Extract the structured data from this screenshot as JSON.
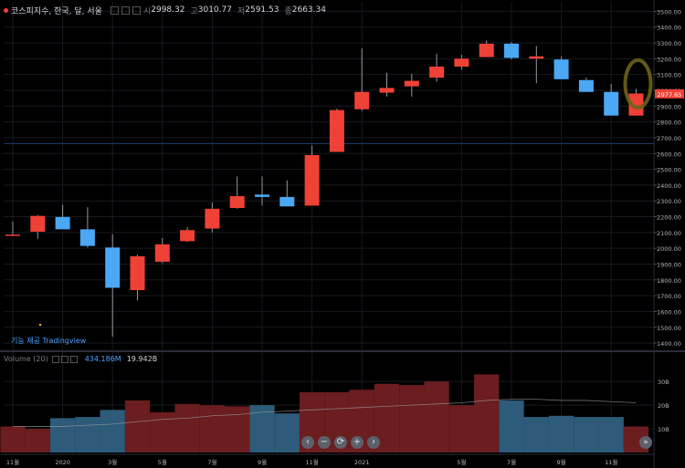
{
  "header": {
    "symbol": "코스피지수, 한국, 달, 서울",
    "open_label": "시",
    "open": "2998.32",
    "high_label": "고",
    "high": "3010.77",
    "low_label": "저",
    "low": "2591.53",
    "close_label": "종",
    "close": "2663.34"
  },
  "credit": "기능 제공 Tradingview",
  "volume_legend": {
    "name": "Volume (20)",
    "value1": "434.186M",
    "value2": "19.942B"
  },
  "nav": {
    "prev": "‹",
    "zoom_out": "−",
    "reset": "⟳",
    "zoom_in": "+",
    "next": "›",
    "jump": "»"
  },
  "price_tag": "2977.65",
  "colors": {
    "up": "#ef4136",
    "down": "#4aa8f5",
    "vol_up": "#6b1d1f",
    "vol_down": "#2e5b7a",
    "ma": "#a0a0a0"
  },
  "chart_data": {
    "type": "candlestick",
    "price_axis": {
      "ylim": [
        1360,
        3560
      ],
      "ticks": [
        1400,
        1500,
        1600,
        1700,
        1800,
        1900,
        2000,
        2100,
        2200,
        2300,
        2400,
        2500,
        2600,
        2700,
        2800,
        2900,
        3000,
        3100,
        3200,
        3300,
        3400,
        3500
      ],
      "tick_labels": [
        "1400.00",
        "1500.00",
        "1600.00",
        "1700.00",
        "1800.00",
        "1900.00",
        "2000.00",
        "2100.00",
        "2200.00",
        "2300.00",
        "2400.00",
        "2500.00",
        "2600.00",
        "2700.00",
        "2800.00",
        "2900.00",
        "3000.00",
        "3100.00",
        "3200.00",
        "3300.00",
        "3400.00",
        "3500.00"
      ]
    },
    "reference_line": 2663,
    "x_axis": {
      "labels": [
        {
          "i": 0,
          "text": "11월"
        },
        {
          "i": 2,
          "text": "2020"
        },
        {
          "i": 4,
          "text": "3월"
        },
        {
          "i": 6,
          "text": "5월"
        },
        {
          "i": 8,
          "text": "7월"
        },
        {
          "i": 10,
          "text": "9월"
        },
        {
          "i": 12,
          "text": "11월"
        },
        {
          "i": 14,
          "text": "2021"
        },
        {
          "i": 18,
          "text": "5월"
        },
        {
          "i": 20,
          "text": "7월"
        },
        {
          "i": 22,
          "text": "9월"
        },
        {
          "i": 24,
          "text": "11월"
        }
      ]
    },
    "candles": [
      {
        "o": 2080,
        "h": 2170,
        "l": 2080,
        "c": 2087
      },
      {
        "o": 2105,
        "h": 2210,
        "l": 2060,
        "c": 2205
      },
      {
        "o": 2198,
        "h": 2275,
        "l": 2130,
        "c": 2120
      },
      {
        "o": 2120,
        "h": 2260,
        "l": 2005,
        "c": 2015
      },
      {
        "o": 2005,
        "h": 2090,
        "l": 1440,
        "c": 1750
      },
      {
        "o": 1735,
        "h": 1960,
        "l": 1670,
        "c": 1950
      },
      {
        "o": 1915,
        "h": 2065,
        "l": 1905,
        "c": 2025
      },
      {
        "o": 2045,
        "h": 2135,
        "l": 2040,
        "c": 2115
      },
      {
        "o": 2125,
        "h": 2290,
        "l": 2100,
        "c": 2250
      },
      {
        "o": 2255,
        "h": 2455,
        "l": 2250,
        "c": 2330
      },
      {
        "o": 2340,
        "h": 2455,
        "l": 2270,
        "c": 2325
      },
      {
        "o": 2325,
        "h": 2430,
        "l": 2270,
        "c": 2265
      },
      {
        "o": 2270,
        "h": 2650,
        "l": 2270,
        "c": 2590
      },
      {
        "o": 2610,
        "h": 2885,
        "l": 2610,
        "c": 2875
      },
      {
        "o": 2880,
        "h": 3265,
        "l": 2870,
        "c": 2990
      },
      {
        "o": 2985,
        "h": 3110,
        "l": 2960,
        "c": 3015
      },
      {
        "o": 3025,
        "h": 3105,
        "l": 2960,
        "c": 3060
      },
      {
        "o": 3080,
        "h": 3230,
        "l": 3055,
        "c": 3150
      },
      {
        "o": 3150,
        "h": 3225,
        "l": 3130,
        "c": 3200
      },
      {
        "o": 3210,
        "h": 3315,
        "l": 3210,
        "c": 3295
      },
      {
        "o": 3295,
        "h": 3305,
        "l": 3195,
        "c": 3205
      },
      {
        "o": 3200,
        "h": 3280,
        "l": 3045,
        "c": 3215
      },
      {
        "o": 3195,
        "h": 3215,
        "l": 3070,
        "c": 3070
      },
      {
        "o": 3065,
        "h": 3080,
        "l": 2990,
        "c": 2990
      },
      {
        "o": 2990,
        "h": 3040,
        "l": 2850,
        "c": 2840
      },
      {
        "o": 2840,
        "h": 3010,
        "l": 2840,
        "c": 2980
      }
    ],
    "volume": {
      "ylim": [
        0,
        37
      ],
      "ticks": [
        10,
        20,
        30
      ],
      "tick_labels": [
        "10B",
        "20B",
        "30B"
      ],
      "values": [
        11,
        10,
        14.5,
        15,
        18,
        22,
        17,
        20.5,
        20,
        19.5,
        20,
        16.5,
        25.5,
        25.5,
        26.5,
        29,
        28.5,
        30,
        20,
        33,
        22,
        15,
        15.5,
        15,
        15,
        11
      ],
      "direction": [
        "up",
        "up",
        "down",
        "down",
        "down",
        "up",
        "up",
        "up",
        "up",
        "up",
        "down",
        "down",
        "up",
        "up",
        "up",
        "up",
        "up",
        "up",
        "up",
        "up",
        "down",
        "down",
        "down",
        "down",
        "down",
        "up"
      ],
      "ma": [
        11,
        11,
        11,
        11.5,
        12,
        13,
        14,
        14.5,
        15.5,
        16,
        17,
        17.5,
        18,
        18.5,
        19,
        19.5,
        20,
        20.5,
        21,
        22,
        22.5,
        22.5,
        22,
        22,
        21.5,
        21
      ]
    }
  }
}
